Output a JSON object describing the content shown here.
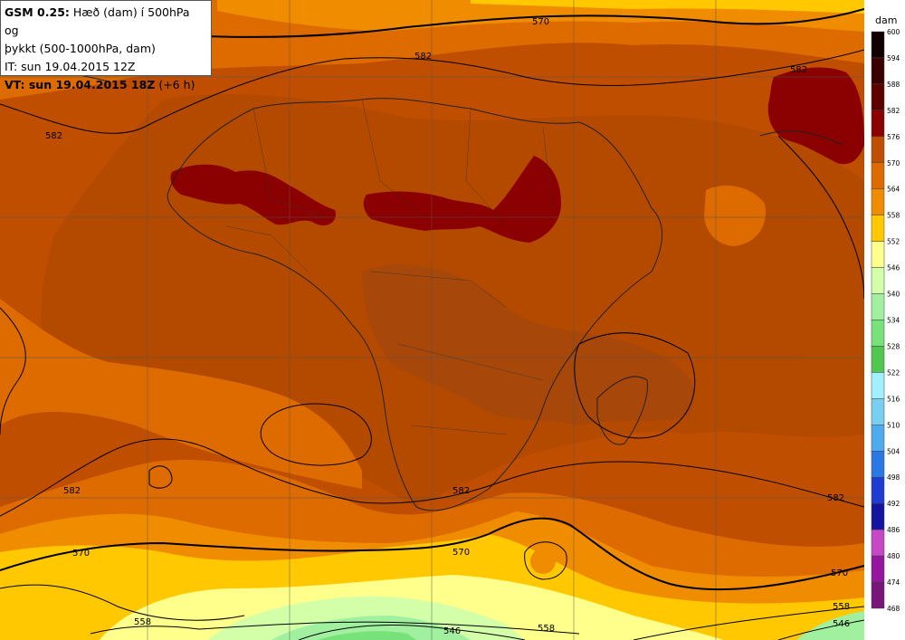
{
  "info": {
    "model": "GSM 0.25:",
    "desc_line1": " Hæð (dam) í 500hPa og",
    "desc_line2": "þykkt (500-1000hPa, dam)",
    "it": "IT: sun 19.04.2015 12Z",
    "vt_bold": "VT: sun 19.04.2015 18Z",
    "vt_extra": " (+6 h)"
  },
  "legend": {
    "unit": "dam",
    "levels": [
      "600",
      "594",
      "588",
      "582",
      "576",
      "570",
      "564",
      "558",
      "552",
      "546",
      "540",
      "534",
      "528",
      "522",
      "516",
      "510",
      "504",
      "498",
      "492",
      "486",
      "480",
      "474",
      "468"
    ],
    "colors": [
      "#120000",
      "#3a0000",
      "#5c0000",
      "#8b0000",
      "#c04e00",
      "#de6b00",
      "#f08c00",
      "#ffc800",
      "#ffff8c",
      "#d2ffa8",
      "#a0f0a0",
      "#78e27a",
      "#50c850",
      "#a0f0ff",
      "#78cff0",
      "#50aaf0",
      "#2a78e6",
      "#1e3cd2",
      "#1414a0",
      "#c846c8",
      "#9614a0",
      "#78147a",
      "#500050"
    ]
  },
  "contour_labels": [
    {
      "text": "570"
    },
    {
      "text": "582"
    },
    {
      "text": "582"
    },
    {
      "text": "582"
    },
    {
      "text": "582"
    },
    {
      "text": "582"
    },
    {
      "text": "582"
    },
    {
      "text": "570"
    },
    {
      "text": "570"
    },
    {
      "text": "570"
    },
    {
      "text": "558"
    },
    {
      "text": "558"
    },
    {
      "text": "546"
    },
    {
      "text": "558"
    },
    {
      "text": "546"
    }
  ]
}
